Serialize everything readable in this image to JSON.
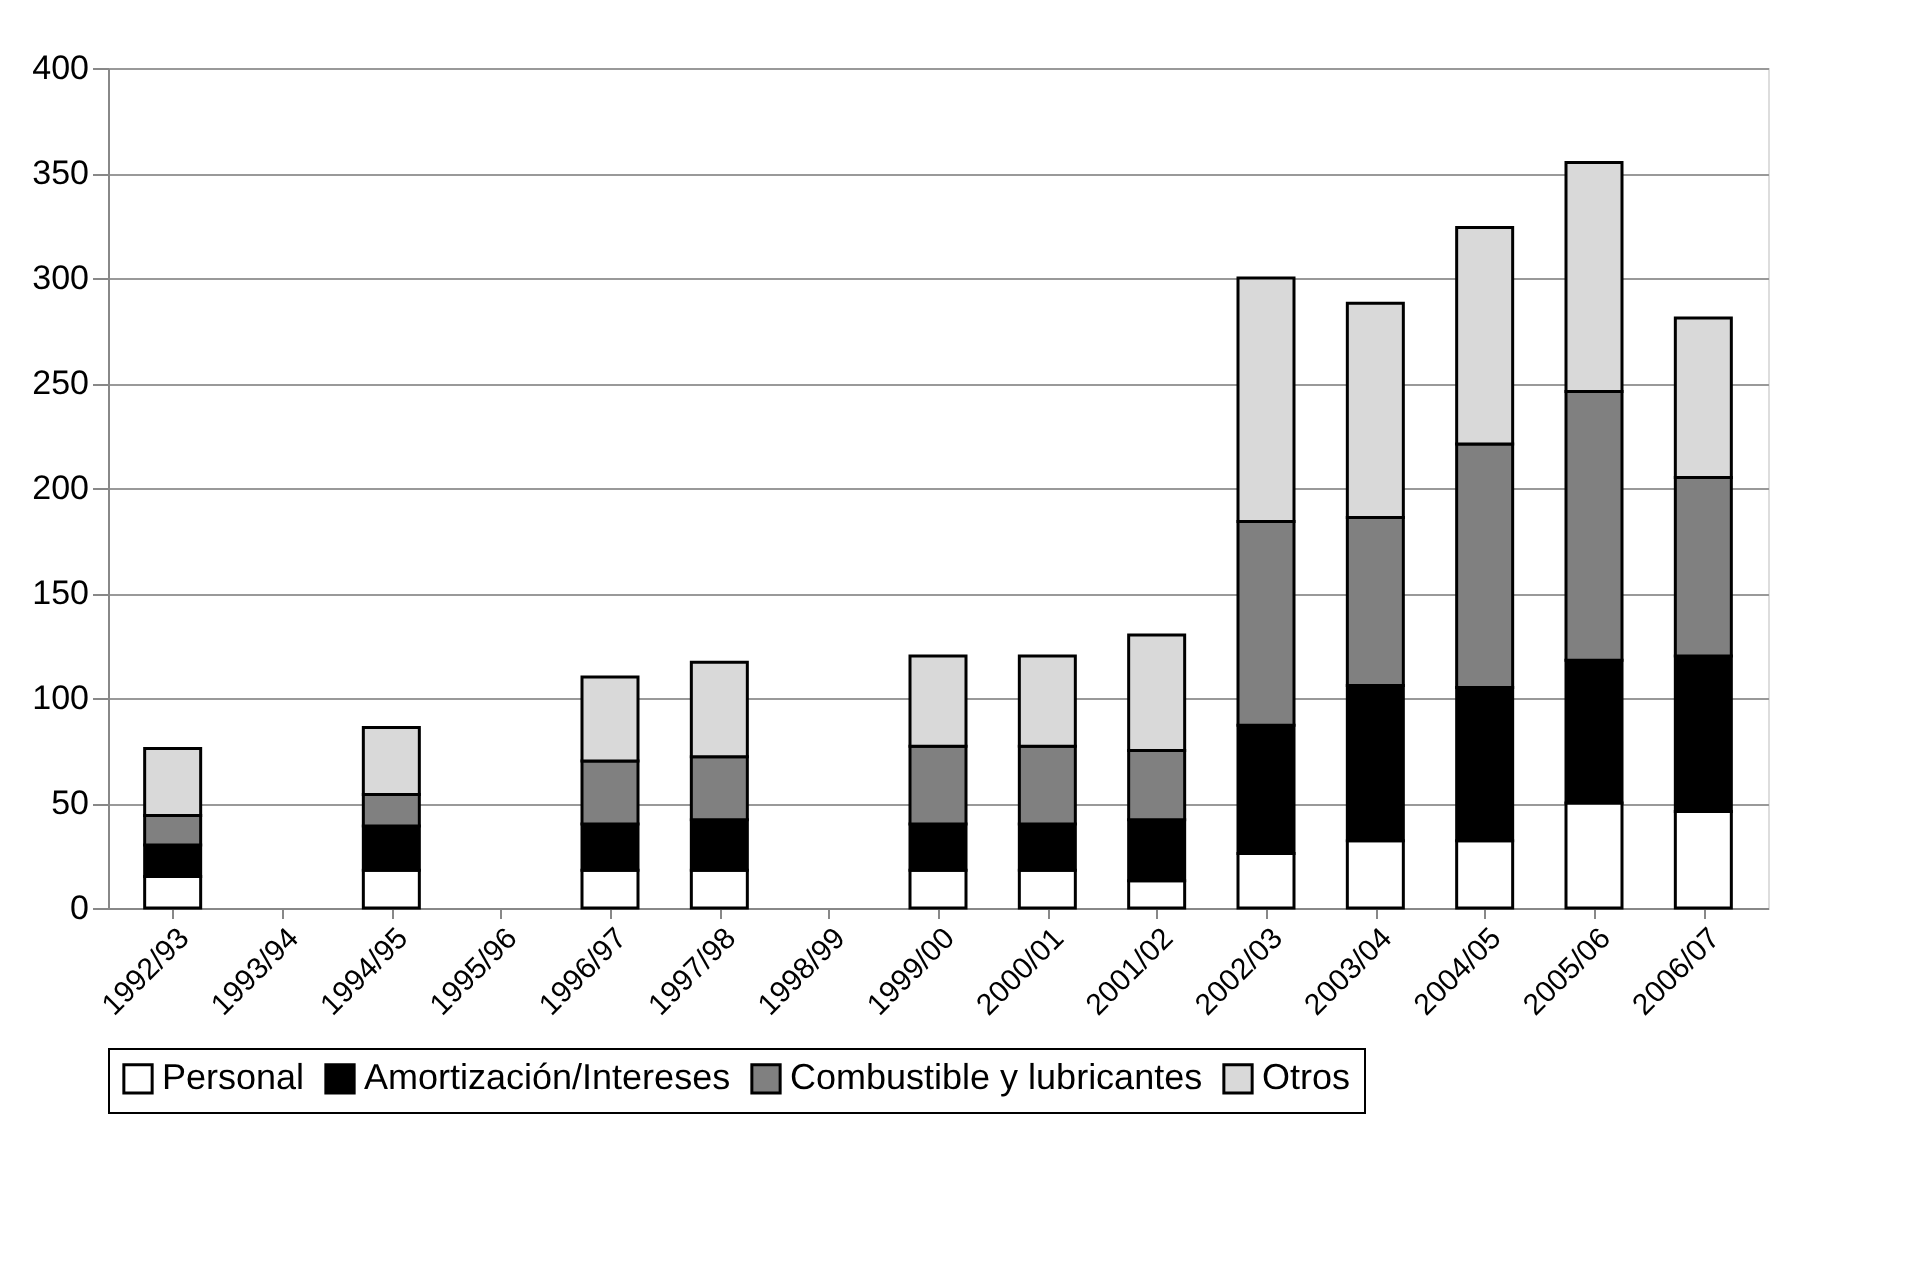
{
  "chart_data": {
    "type": "bar",
    "stacked": true,
    "categories": [
      "1992/93",
      "1993/94",
      "1994/95",
      "1995/96",
      "1996/97",
      "1997/98",
      "1998/99",
      "1999/00",
      "2000/01",
      "2001/02",
      "2002/03",
      "2003/04",
      "2004/05",
      "2005/06",
      "2006/07"
    ],
    "series": [
      {
        "name": "Personal",
        "color": "#ffffff",
        "values": [
          15,
          null,
          18,
          null,
          18,
          18,
          null,
          18,
          18,
          13,
          26,
          32,
          32,
          50,
          46
        ]
      },
      {
        "name": "Amortización/Intereses",
        "color": "#000000",
        "values": [
          15,
          null,
          21,
          null,
          22,
          24,
          null,
          22,
          22,
          29,
          61,
          74,
          73,
          68,
          74
        ]
      },
      {
        "name": "Combustible y lubricantes",
        "color": "#808080",
        "values": [
          14,
          null,
          15,
          null,
          30,
          30,
          null,
          37,
          37,
          33,
          97,
          80,
          116,
          128,
          85
        ]
      },
      {
        "name": "Otros",
        "color": "#d9d9d9",
        "values": [
          32,
          null,
          32,
          null,
          40,
          45,
          null,
          43,
          43,
          55,
          116,
          102,
          103,
          109,
          76
        ]
      }
    ],
    "ylim": [
      0,
      400
    ],
    "yticks": [
      0,
      50,
      100,
      150,
      200,
      250,
      300,
      350,
      400
    ],
    "grid": "y",
    "legend": "bottom"
  }
}
